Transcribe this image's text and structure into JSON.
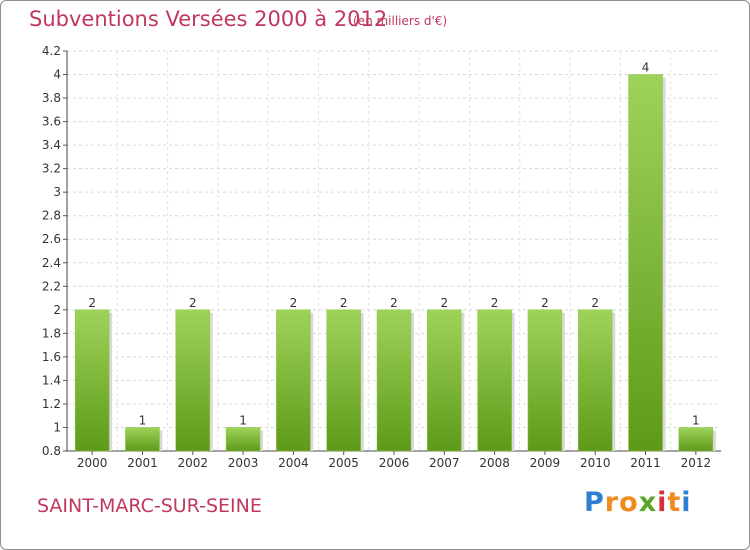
{
  "title": "Subventions Versées 2000 à 2012",
  "subtitle": "(en milliers d'€)",
  "place": "SAINT-MARC-SUR-SEINE",
  "logo": {
    "letters": [
      "P",
      "r",
      "o",
      "x",
      "i",
      "t",
      "i"
    ],
    "colors": [
      "#2e7fd0",
      "#f08a1c",
      "#f08a1c",
      "#5aa52a",
      "#d62e3a",
      "#f08a1c",
      "#2e7fd0"
    ]
  },
  "colors": {
    "bar_top": "#9ed35a",
    "bar_bottom": "#5e9a19",
    "text": "#c0385e"
  },
  "chart_data": {
    "type": "bar",
    "categories": [
      "2000",
      "2001",
      "2002",
      "2003",
      "2004",
      "2005",
      "2006",
      "2007",
      "2008",
      "2009",
      "2010",
      "2011",
      "2012"
    ],
    "values": [
      2,
      1,
      2,
      1,
      2,
      2,
      2,
      2,
      2,
      2,
      2,
      4,
      1
    ],
    "data_labels": [
      "2",
      "1",
      "2",
      "1",
      "2",
      "2",
      "2",
      "2",
      "2",
      "2",
      "2",
      "4",
      "1"
    ],
    "title": "Subventions Versées 2000 à 2012",
    "ylim": [
      0.8,
      4.2
    ],
    "yticks": [
      0.8,
      1,
      1.2,
      1.4,
      1.6,
      1.8,
      2,
      2.2,
      2.4,
      2.6,
      2.8,
      3,
      3.2,
      3.4,
      3.6,
      3.8,
      4,
      4.2
    ],
    "ytick_labels": [
      "0.8",
      "1",
      "1.2",
      "1.4",
      "1.6",
      "1.8",
      "2",
      "2.2",
      "2.4",
      "2.6",
      "2.8",
      "3",
      "3.2",
      "3.4",
      "3.6",
      "3.8",
      "4",
      "4.2"
    ],
    "grid": true
  }
}
